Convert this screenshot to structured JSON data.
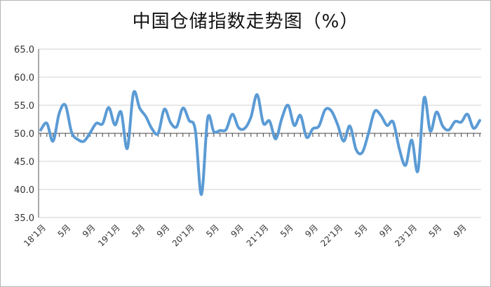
{
  "chart_data": {
    "type": "line",
    "title": "中国仓储指数走势图（%）",
    "ylim": [
      35.0,
      65.0
    ],
    "yticks": [
      "35.0",
      "40.0",
      "45.0",
      "50.0",
      "55.0",
      "60.0",
      "65.0"
    ],
    "x": [
      "18'1月",
      "2018-02",
      "2018-03",
      "2018-04",
      "5月",
      "2018-06",
      "2018-07",
      "2018-08",
      "9月",
      "2018-10",
      "2018-11",
      "2018-12",
      "19'1月",
      "2019-02",
      "2019-03",
      "2019-04",
      "5月",
      "2019-06",
      "2019-07",
      "2019-08",
      "9月",
      "2019-10",
      "2019-11",
      "2019-12",
      "20'1月",
      "2020-02",
      "2020-03",
      "2020-04",
      "5月",
      "2020-06",
      "2020-07",
      "2020-08",
      "9月",
      "2020-10",
      "2020-11",
      "2020-12",
      "21'1月",
      "2021-02",
      "2021-03",
      "2021-04",
      "5月",
      "2021-06",
      "2021-07",
      "2021-08",
      "9月",
      "2021-10",
      "2021-11",
      "2021-12",
      "22'1月",
      "2022-02",
      "2022-03",
      "2022-04",
      "5月",
      "2022-06",
      "2022-07",
      "2022-08",
      "9月",
      "2022-10",
      "2022-11",
      "2022-12",
      "23'1月",
      "2023-02",
      "2023-03",
      "2023-04",
      "5月",
      "2023-06",
      "2023-07",
      "2023-08",
      "9月",
      "2023-10",
      "2023-11",
      "2023-12"
    ],
    "xtick_labels": [
      "18'1月",
      "5月",
      "9月",
      "19'1月",
      "5月",
      "9月",
      "20'1月",
      "5月",
      "9月",
      "21'1月",
      "5月",
      "9月",
      "22'1月",
      "5月",
      "9月",
      "23'1月",
      "5月",
      "9月"
    ],
    "series": [
      {
        "color": "#5b9bd5",
        "values": [
          50.6,
          51.8,
          48.6,
          53.6,
          55.0,
          50.2,
          48.9,
          48.6,
          50.1,
          51.8,
          51.7,
          54.6,
          51.5,
          53.8,
          47.3,
          57.2,
          54.5,
          53.0,
          50.8,
          50.0,
          54.3,
          51.9,
          51.2,
          54.5,
          52.3,
          50.6,
          39.1,
          52.7,
          50.3,
          50.5,
          50.7,
          53.4,
          51.0,
          50.9,
          52.9,
          56.9,
          51.8,
          52.2,
          49.0,
          52.7,
          55.0,
          51.4,
          53.2,
          49.3,
          50.8,
          51.3,
          54.2,
          54.0,
          51.6,
          48.6,
          51.3,
          47.1,
          46.6,
          50.0,
          53.9,
          53.2,
          51.4,
          52.0,
          47.2,
          44.3,
          48.8,
          43.3,
          56.3,
          50.4,
          53.8,
          51.3,
          50.6,
          52.1,
          52.0,
          53.4,
          50.9,
          52.3
        ]
      }
    ],
    "grid": true,
    "legend": "none"
  }
}
